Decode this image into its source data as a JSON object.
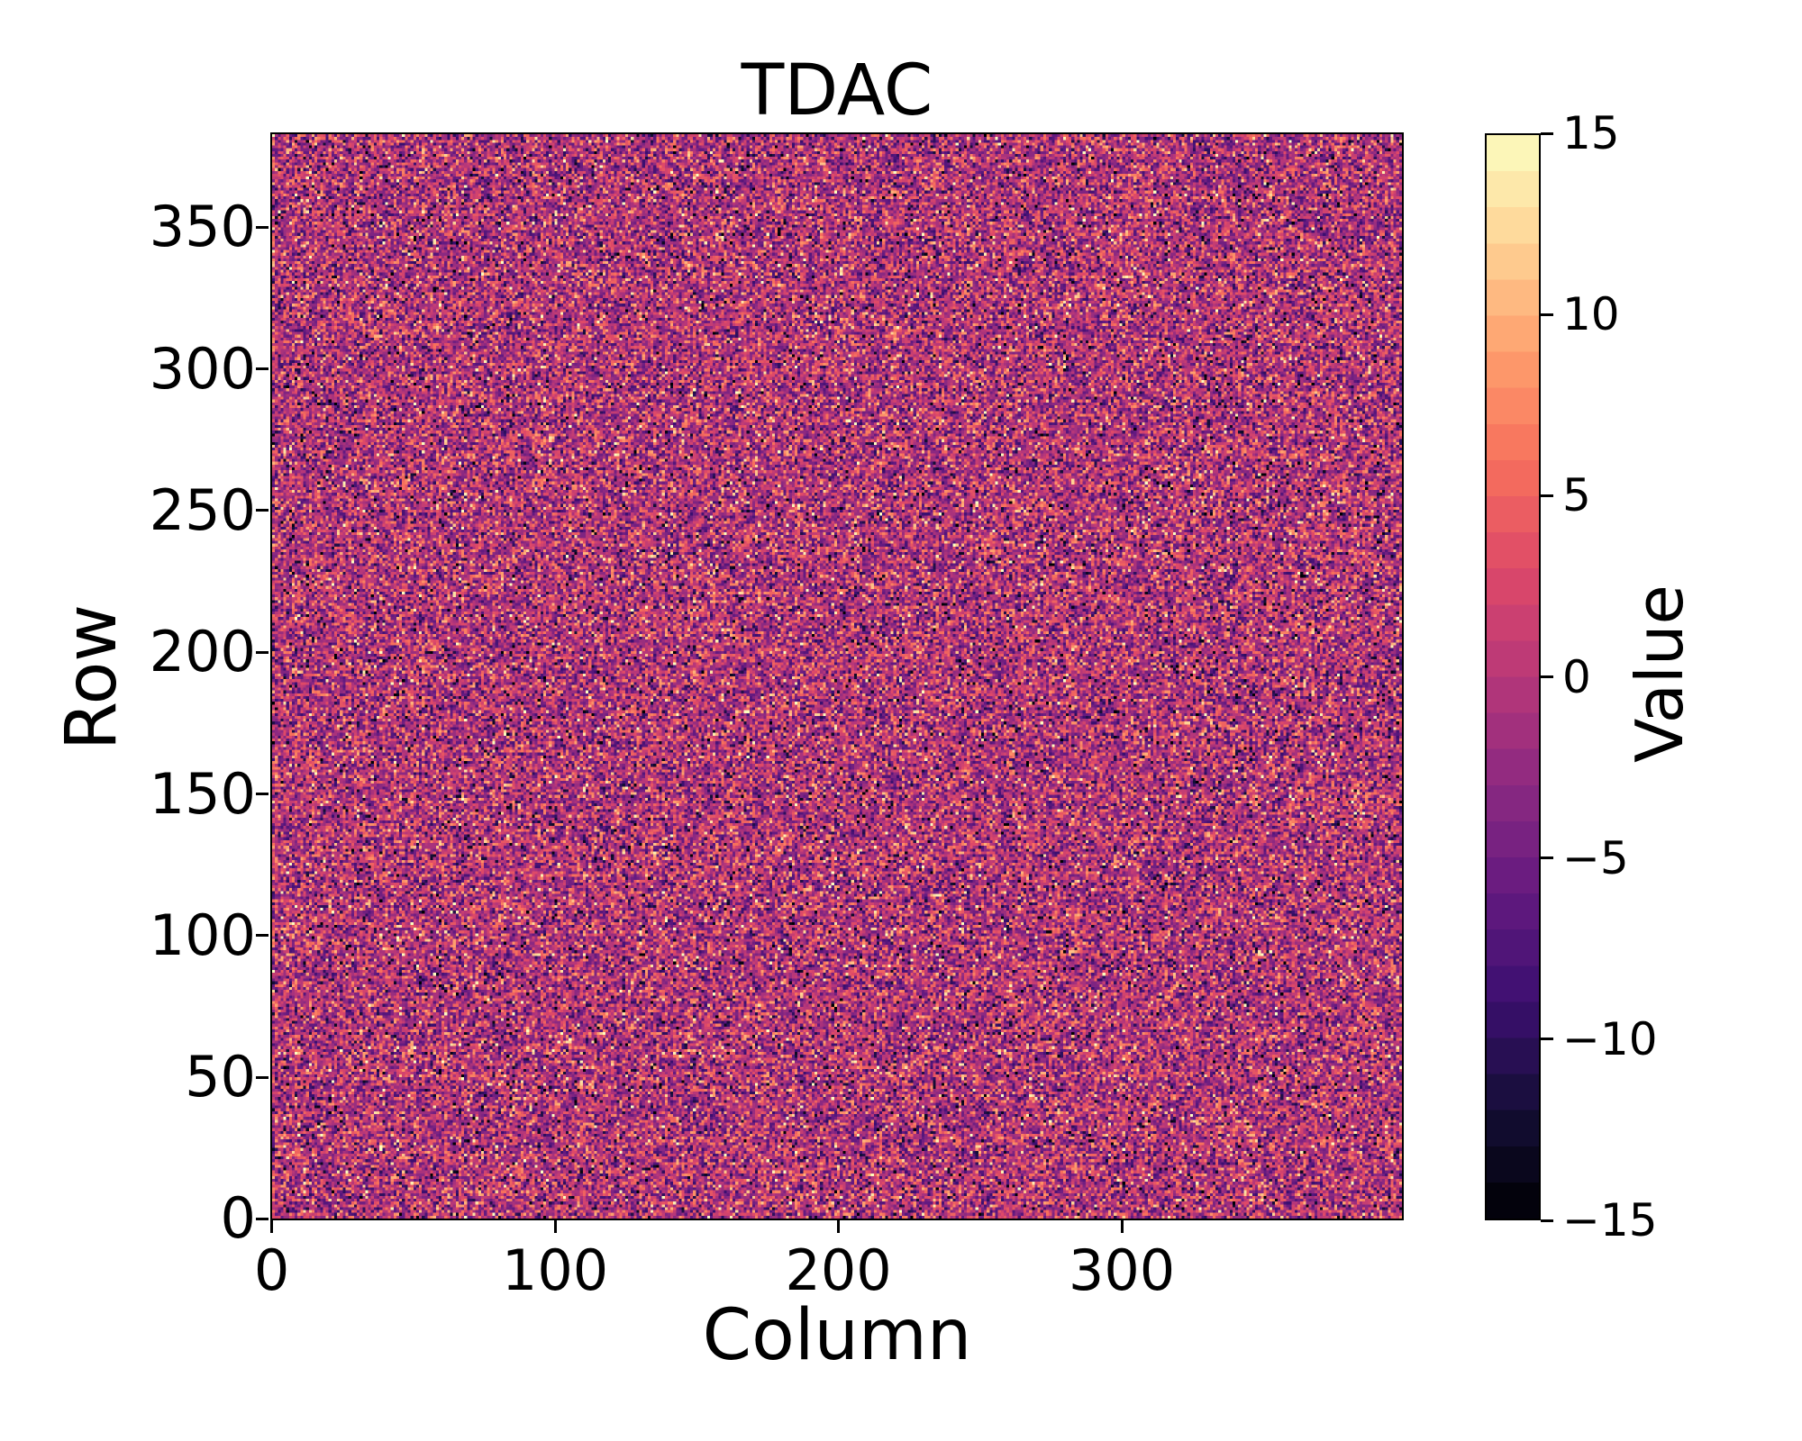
{
  "chart_data": {
    "type": "heatmap",
    "title": "TDAC",
    "xlabel": "Column",
    "ylabel": "Row",
    "colorbar_label": "Value",
    "grid": {
      "columns": 400,
      "rows": 384
    },
    "x_range": [
      0,
      400
    ],
    "y_range": [
      0,
      384
    ],
    "x_ticks": [
      0,
      100,
      200,
      300
    ],
    "x_tick_labels": [
      "0",
      "100",
      "200",
      "300"
    ],
    "y_ticks": [
      0,
      50,
      100,
      150,
      200,
      250,
      300,
      350
    ],
    "y_tick_labels": [
      "0",
      "50",
      "100",
      "150",
      "200",
      "250",
      "300",
      "350"
    ],
    "colorbar_ticks": [
      15,
      10,
      5,
      0,
      -5,
      -10,
      -15
    ],
    "colorbar_tick_labels": [
      "15",
      "10",
      "5",
      "0",
      "−5",
      "−10",
      "−15"
    ],
    "value_range": [
      -15,
      15
    ],
    "colormap": {
      "name": "magma",
      "discrete_step": 1,
      "stops": [
        "#000004",
        "#140e36",
        "#3b0f70",
        "#641a80",
        "#8c2981",
        "#b73779",
        "#de4968",
        "#f7705c",
        "#fe9f6d",
        "#fed395",
        "#fcfdbf"
      ]
    },
    "values": {
      "description": "per-pixel random integer noise spanning the full colour range",
      "distribution": "gaussian",
      "mean": -0.5,
      "std": 5.5,
      "rounded_to_integer": true,
      "clip": [
        -15,
        15
      ],
      "seed": 7
    },
    "legend_position": "right-colorbar",
    "grid_lines": false
  }
}
